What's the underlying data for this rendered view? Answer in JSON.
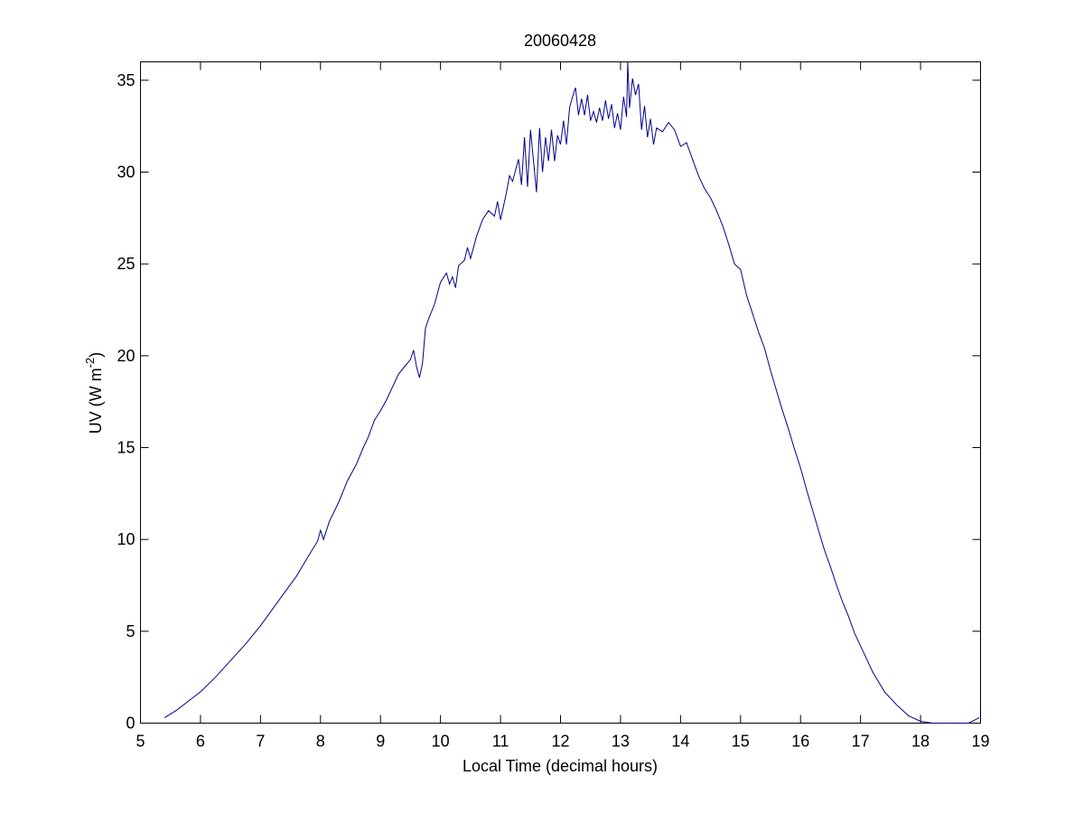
{
  "chart_data": {
    "type": "line",
    "title": "20060428",
    "xlabel": "Local Time (decimal hours)",
    "ylabel": "UV (W m",
    "ylabel_superscript": "-2",
    "ylabel_suffix": ")",
    "xlim": [
      5,
      19
    ],
    "ylim": [
      0,
      36
    ],
    "xticks": [
      5,
      6,
      7,
      8,
      9,
      10,
      11,
      12,
      13,
      14,
      15,
      16,
      17,
      18,
      19
    ],
    "yticks": [
      0,
      5,
      10,
      15,
      20,
      25,
      30,
      35
    ],
    "grid": false,
    "line_color": "#00008b",
    "series": [
      {
        "x": [
          5.4,
          5.6,
          5.8,
          6.0,
          6.25,
          6.5,
          6.75,
          7.0,
          7.2,
          7.4,
          7.6,
          7.8,
          7.95,
          8.0,
          8.05,
          8.15,
          8.3,
          8.45,
          8.6,
          8.7,
          8.8,
          8.9,
          9.0,
          9.1,
          9.2,
          9.3,
          9.4,
          9.5,
          9.55,
          9.6,
          9.65,
          9.7,
          9.75,
          9.8,
          9.9,
          10.0,
          10.1,
          10.15,
          10.2,
          10.25,
          10.3,
          10.4,
          10.45,
          10.5,
          10.6,
          10.7,
          10.8,
          10.9,
          10.95,
          11.0,
          11.1,
          11.15,
          11.2,
          11.3,
          11.35,
          11.4,
          11.45,
          11.5,
          11.55,
          11.6,
          11.65,
          11.7,
          11.75,
          11.8,
          11.85,
          11.9,
          11.95,
          12.0,
          12.05,
          12.1,
          12.15,
          12.2,
          12.25,
          12.3,
          12.35,
          12.4,
          12.45,
          12.5,
          12.55,
          12.6,
          12.65,
          12.7,
          12.75,
          12.8,
          12.85,
          12.9,
          12.95,
          13.0,
          13.05,
          13.1,
          13.12,
          13.15,
          13.2,
          13.25,
          13.3,
          13.35,
          13.4,
          13.45,
          13.5,
          13.55,
          13.6,
          13.7,
          13.8,
          13.9,
          14.0,
          14.1,
          14.2,
          14.3,
          14.4,
          14.5,
          14.6,
          14.7,
          14.8,
          14.9,
          15.0,
          15.1,
          15.2,
          15.3,
          15.4,
          15.5,
          15.6,
          15.7,
          15.8,
          15.9,
          16.0,
          16.1,
          16.2,
          16.3,
          16.4,
          16.5,
          16.6,
          16.7,
          16.8,
          16.9,
          17.0,
          17.1,
          17.2,
          17.4,
          17.6,
          17.8,
          18.0,
          18.2,
          18.4,
          18.6,
          18.8,
          18.98
        ],
        "y": [
          0.3,
          0.7,
          1.2,
          1.7,
          2.5,
          3.4,
          4.3,
          5.3,
          6.2,
          7.1,
          8.0,
          9.1,
          9.9,
          10.5,
          10.0,
          11.0,
          12.0,
          13.2,
          14.1,
          14.9,
          15.6,
          16.5,
          17.0,
          17.6,
          18.3,
          19.0,
          19.4,
          19.8,
          20.3,
          19.4,
          18.8,
          19.6,
          21.5,
          22.0,
          22.8,
          24.0,
          24.5,
          23.9,
          24.3,
          23.7,
          24.9,
          25.2,
          25.9,
          25.3,
          26.5,
          27.4,
          27.9,
          27.6,
          28.4,
          27.4,
          28.9,
          29.8,
          29.5,
          30.7,
          29.3,
          31.9,
          29.2,
          32.3,
          30.6,
          28.9,
          32.4,
          30.0,
          31.9,
          30.6,
          32.3,
          30.6,
          32.0,
          31.5,
          32.8,
          31.5,
          33.5,
          34.1,
          34.6,
          33.1,
          34.0,
          33.1,
          34.2,
          32.8,
          33.3,
          32.7,
          33.5,
          32.8,
          33.9,
          32.9,
          33.7,
          32.4,
          33.2,
          32.3,
          34.1,
          33.0,
          36.0,
          33.5,
          35.1,
          34.2,
          34.8,
          32.3,
          33.6,
          31.9,
          32.9,
          31.5,
          32.4,
          32.2,
          32.7,
          32.3,
          31.4,
          31.6,
          30.7,
          29.8,
          29.1,
          28.6,
          27.9,
          27.1,
          26.1,
          25.0,
          24.7,
          23.3,
          22.3,
          21.3,
          20.4,
          19.2,
          18.1,
          17.0,
          16.0,
          14.9,
          13.9,
          12.7,
          11.6,
          10.5,
          9.4,
          8.5,
          7.5,
          6.6,
          5.8,
          4.9,
          4.2,
          3.5,
          2.8,
          1.7,
          1.0,
          0.4,
          0.1,
          0.0,
          0.0,
          0.0,
          0.0,
          0.3
        ]
      }
    ]
  }
}
